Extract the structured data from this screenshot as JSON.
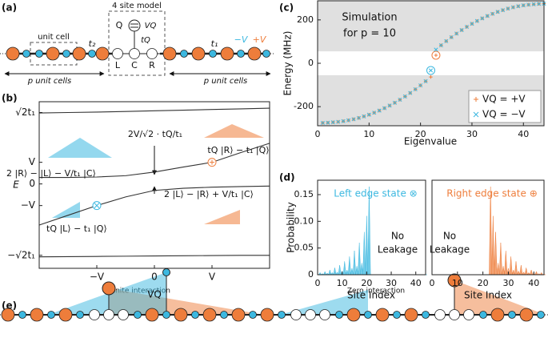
{
  "panel_a": {
    "label": "(a)",
    "model_title": "4 site model",
    "unit_cell": "unit cell",
    "hopping": [
      "t₂",
      "tQ",
      "t₁"
    ],
    "sites": [
      "Q",
      "L",
      "C",
      "R"
    ],
    "potential": "VQ",
    "voltages": [
      "−V",
      "+V"
    ],
    "unit_cells_left": "p unit cells",
    "unit_cells_right": "p unit cells"
  },
  "panel_e": {
    "label": "(e)",
    "captions": [
      "Finite interaction",
      "Zero interaction"
    ]
  },
  "chart_data": [
    {
      "type": "line",
      "panel_label": "(b)",
      "xlabel": "VQ",
      "ylabel": "E",
      "x": [
        -2,
        -1.5,
        -1,
        -0.5,
        0,
        0.5,
        1,
        1.5,
        2
      ],
      "series": [
        {
          "color": "#333333",
          "values": [
            3.28,
            3.3,
            3.32,
            3.35,
            3.38,
            3.41,
            3.44,
            3.47,
            3.5
          ]
        },
        {
          "color": "#333333",
          "values": [
            0.3,
            0.3,
            0.32,
            0.38,
            0.55,
            0.78,
            1.0,
            1.45,
            1.88
          ]
        },
        {
          "color": "#333333",
          "values": [
            -1.9,
            -1.45,
            -1.0,
            -0.6,
            -0.3,
            -0.2,
            -0.15,
            -0.12,
            -0.1
          ]
        },
        {
          "color": "#333333",
          "values": [
            -3.37,
            -3.36,
            -3.35,
            -3.34,
            -3.33,
            -3.32,
            -3.31,
            -3.3,
            -3.3
          ]
        }
      ],
      "markers": [
        {
          "x": -1,
          "y": -1,
          "color": "#3cb8e0",
          "symbol": "x"
        },
        {
          "x": 1,
          "y": 1,
          "color": "#ee7d3b",
          "symbol": "+"
        }
      ],
      "annotations": [
        "2V/√2 · tQ/t₁",
        "tQ |R⟩ − t₁ |Q⟩",
        "2 |R⟩ − |L⟩ − V/t₁ |C⟩",
        "2 |L⟩ − |R⟩ + V/t₁ |C⟩",
        "tQ |L⟩ − t₁ |Q⟩"
      ],
      "xlim": [
        -2,
        2
      ],
      "ylim": [
        -3.9,
        3.8
      ],
      "xticks": [
        {
          "value": -1,
          "label": "−V"
        },
        0,
        {
          "value": 1,
          "label": "V"
        }
      ],
      "yticks": [
        {
          "value": -3.3,
          "label": "−√2t₁"
        },
        {
          "value": -1,
          "label": "−V"
        },
        0,
        {
          "value": 1,
          "label": "V"
        },
        {
          "value": 3.3,
          "label": "√2t₁"
        }
      ]
    },
    {
      "type": "scatter",
      "panel_label": "(c)",
      "xlabel": "Eigenvalue",
      "ylabel": "Energy (MHz)",
      "annotations": [
        "Simulation",
        "for p = 10"
      ],
      "x": [
        1,
        2,
        3,
        4,
        5,
        6,
        7,
        8,
        9,
        10,
        11,
        12,
        13,
        14,
        15,
        16,
        17,
        18,
        19,
        20,
        21,
        22,
        23,
        24,
        25,
        26,
        27,
        28,
        29,
        30,
        31,
        32,
        33,
        34,
        35,
        36,
        37,
        38,
        39,
        40,
        41,
        42,
        43,
        44
      ],
      "series": [
        {
          "name": "VQ = +V",
          "color": "#ee7d3b",
          "marker": "+",
          "values": [
            -275,
            -274,
            -272,
            -270,
            -267,
            -263,
            -258,
            -252,
            -245,
            -237,
            -228,
            -218,
            -207,
            -195,
            -182,
            -168,
            -153,
            -137,
            -120,
            -102,
            -83,
            -63,
            37,
            83,
            102,
            120,
            137,
            153,
            168,
            182,
            195,
            207,
            218,
            228,
            237,
            245,
            252,
            258,
            263,
            267,
            270,
            272,
            274,
            275
          ]
        },
        {
          "name": "VQ = −V",
          "color": "#3cb8e0",
          "marker": "x",
          "values": [
            -275,
            -274,
            -272,
            -270,
            -267,
            -263,
            -258,
            -252,
            -245,
            -237,
            -228,
            -218,
            -207,
            -195,
            -182,
            -168,
            -153,
            -137,
            -120,
            -102,
            -83,
            -33,
            63,
            83,
            102,
            120,
            137,
            153,
            168,
            182,
            195,
            207,
            218,
            228,
            237,
            245,
            252,
            258,
            263,
            267,
            270,
            272,
            274,
            275
          ]
        }
      ],
      "edge_state_circles": true,
      "shaded_ranges": [
        [
          55,
          288
        ],
        [
          -288,
          -55
        ]
      ],
      "shade_color": "#e0e0e0",
      "legend": "lower right",
      "xlim": [
        0,
        44
      ],
      "ylim": [
        -288,
        288
      ],
      "xticks": [
        0,
        10,
        20,
        30,
        40
      ],
      "yticks": [
        -200,
        0,
        200
      ]
    },
    {
      "type": "bar",
      "panel_label": "(d)",
      "title": "Left edge state ⊗",
      "annotations": [
        "No",
        "Leakage"
      ],
      "xlabel": "Site Index",
      "ylabel": "Probability",
      "color": "#3cb8e0",
      "x": [
        1,
        2,
        3,
        4,
        5,
        6,
        7,
        8,
        9,
        10,
        11,
        12,
        13,
        14,
        15,
        16,
        17,
        18,
        19,
        20,
        21,
        22,
        23,
        24,
        25,
        26,
        27,
        28,
        29,
        30,
        31,
        32,
        33,
        34,
        35,
        36,
        37,
        38,
        39,
        40,
        41,
        42,
        43,
        44
      ],
      "values": [
        0.004,
        0.002,
        0.006,
        0.003,
        0.009,
        0.004,
        0.013,
        0.005,
        0.018,
        0.007,
        0.025,
        0.009,
        0.034,
        0.012,
        0.045,
        0.016,
        0.06,
        0.022,
        0.08,
        0.11,
        0.165,
        0,
        0,
        0,
        0,
        0,
        0,
        0,
        0,
        0,
        0,
        0,
        0,
        0,
        0,
        0,
        0,
        0,
        0,
        0,
        0,
        0,
        0,
        0
      ],
      "xlim": [
        0,
        44
      ],
      "ylim": [
        0,
        0.177
      ],
      "xticks": [
        0,
        10,
        20,
        30,
        40
      ],
      "yticks": [
        0,
        0.05,
        {
          "value": 0.1,
          "label": "0.10"
        },
        0.15
      ]
    },
    {
      "type": "bar",
      "title": "Right edge state ⊕",
      "annotations": [
        "No",
        "Leakage"
      ],
      "xlabel": "Site Index",
      "color": "#ee7d3b",
      "x": [
        1,
        2,
        3,
        4,
        5,
        6,
        7,
        8,
        9,
        10,
        11,
        12,
        13,
        14,
        15,
        16,
        17,
        18,
        19,
        20,
        21,
        22,
        23,
        24,
        25,
        26,
        27,
        28,
        29,
        30,
        31,
        32,
        33,
        34,
        35,
        36,
        37,
        38,
        39,
        40,
        41,
        42,
        43,
        44
      ],
      "values": [
        0,
        0,
        0,
        0,
        0,
        0,
        0,
        0,
        0,
        0,
        0,
        0,
        0,
        0,
        0,
        0,
        0,
        0,
        0,
        0,
        0,
        0,
        0.165,
        0.11,
        0.08,
        0.022,
        0.06,
        0.016,
        0.045,
        0.012,
        0.034,
        0.009,
        0.025,
        0.007,
        0.018,
        0.005,
        0.013,
        0.004,
        0.009,
        0.003,
        0.006,
        0.002,
        0.004,
        0.001
      ],
      "xlim": [
        0,
        44
      ],
      "ylim": [
        0,
        0.177
      ],
      "xticks": [
        0,
        10,
        20,
        30,
        40
      ]
    }
  ]
}
